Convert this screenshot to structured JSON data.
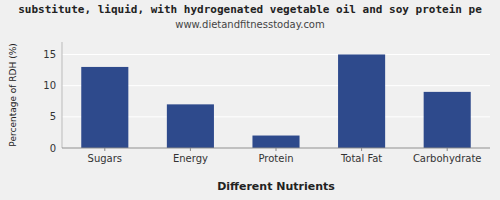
{
  "chart_data": {
    "type": "bar",
    "title": "substitute, liquid, with hydrogenated vegetable oil and soy protein pe",
    "subtitle": "www.dietandfitnesstoday.com",
    "categories": [
      "Sugars",
      "Energy",
      "Protein",
      "Total Fat",
      "Carbohydrate"
    ],
    "values": [
      13,
      7,
      2,
      15,
      9
    ],
    "color": "#2e4a8c",
    "xlabel": "Different Nutrients",
    "ylabel": "Percentage of RDH (%)",
    "ylim": [
      0,
      17
    ],
    "yticks": [
      0,
      5,
      10,
      15
    ],
    "grid": true
  }
}
